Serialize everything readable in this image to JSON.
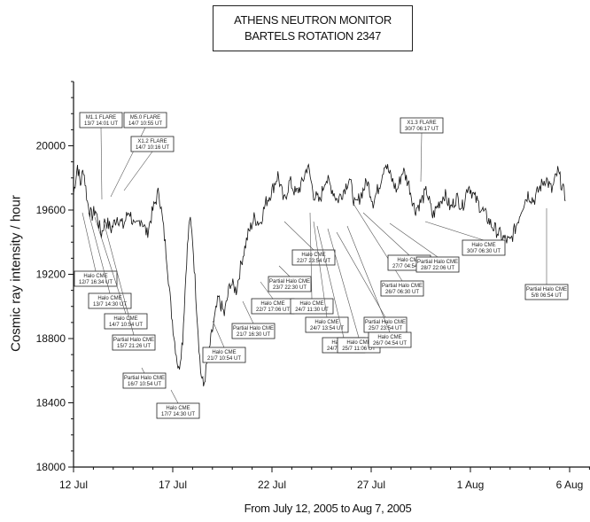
{
  "chart_data": {
    "type": "line",
    "title": [
      "ATHENS NEUTRON MONITOR",
      "BARTELS ROTATION 2347"
    ],
    "xlabel": "From July 12, 2005 to Aug 7, 2005",
    "ylabel": "Cosmic ray intensity / hour",
    "x_ticks": [
      {
        "day": 0,
        "label": "12 Jul"
      },
      {
        "day": 5,
        "label": "17 Jul"
      },
      {
        "day": 10,
        "label": "22 Jul"
      },
      {
        "day": 15,
        "label": "27 Jul"
      },
      {
        "day": 20,
        "label": "1 Aug"
      },
      {
        "day": 25,
        "label": "6 Aug"
      }
    ],
    "xlim": [
      0,
      27
    ],
    "ylim": [
      18000,
      20400
    ],
    "y_ticks": [
      18000,
      18400,
      18800,
      19200,
      19600,
      20000
    ],
    "grid": false,
    "series": [
      {
        "points": [
          [
            0.0,
            19700
          ],
          [
            0.2,
            19880
          ],
          [
            0.35,
            19760
          ],
          [
            0.5,
            19860
          ],
          [
            0.7,
            19650
          ],
          [
            0.9,
            19560
          ],
          [
            1.1,
            19600
          ],
          [
            1.4,
            19450
          ],
          [
            1.6,
            19540
          ],
          [
            1.9,
            19480
          ],
          [
            2.2,
            19560
          ],
          [
            2.5,
            19500
          ],
          [
            2.8,
            19600
          ],
          [
            3.1,
            19480
          ],
          [
            3.4,
            19550
          ],
          [
            3.7,
            19450
          ],
          [
            4.0,
            19600
          ],
          [
            4.3,
            19720
          ],
          [
            4.5,
            19520
          ],
          [
            4.7,
            19300
          ],
          [
            4.9,
            19000
          ],
          [
            5.1,
            18780
          ],
          [
            5.3,
            18600
          ],
          [
            5.5,
            18800
          ],
          [
            5.7,
            19300
          ],
          [
            5.85,
            19550
          ],
          [
            6.0,
            19420
          ],
          [
            6.2,
            19000
          ],
          [
            6.4,
            18600
          ],
          [
            6.55,
            18500
          ],
          [
            6.8,
            18700
          ],
          [
            7.0,
            18850
          ],
          [
            7.3,
            19050
          ],
          [
            7.6,
            18950
          ],
          [
            7.9,
            19150
          ],
          [
            8.2,
            19100
          ],
          [
            8.5,
            19300
          ],
          [
            8.8,
            19450
          ],
          [
            9.1,
            19550
          ],
          [
            9.4,
            19520
          ],
          [
            9.7,
            19650
          ],
          [
            10.0,
            19720
          ],
          [
            10.3,
            19820
          ],
          [
            10.6,
            19650
          ],
          [
            10.9,
            19780
          ],
          [
            11.2,
            19700
          ],
          [
            11.5,
            19760
          ],
          [
            11.8,
            19880
          ],
          [
            12.1,
            19700
          ],
          [
            12.4,
            19650
          ],
          [
            12.7,
            19800
          ],
          [
            13.0,
            19740
          ],
          [
            13.3,
            19660
          ],
          [
            13.6,
            19720
          ],
          [
            13.9,
            19800
          ],
          [
            14.2,
            19620
          ],
          [
            14.5,
            19700
          ],
          [
            14.8,
            19780
          ],
          [
            15.1,
            19650
          ],
          [
            15.4,
            19750
          ],
          [
            15.7,
            19900
          ],
          [
            16.0,
            19800
          ],
          [
            16.3,
            19720
          ],
          [
            16.6,
            19850
          ],
          [
            16.9,
            19760
          ],
          [
            17.2,
            19600
          ],
          [
            17.5,
            19650
          ],
          [
            17.8,
            19720
          ],
          [
            18.1,
            19560
          ],
          [
            18.4,
            19640
          ],
          [
            18.7,
            19700
          ],
          [
            19.0,
            19610
          ],
          [
            19.3,
            19680
          ],
          [
            19.6,
            19620
          ],
          [
            19.9,
            19760
          ],
          [
            20.2,
            19680
          ],
          [
            20.5,
            19620
          ],
          [
            20.8,
            19560
          ],
          [
            21.1,
            19500
          ],
          [
            21.4,
            19460
          ],
          [
            21.7,
            19420
          ],
          [
            22.0,
            19400
          ],
          [
            22.3,
            19500
          ],
          [
            22.6,
            19620
          ],
          [
            22.9,
            19700
          ],
          [
            23.2,
            19660
          ],
          [
            23.5,
            19740
          ],
          [
            23.8,
            19800
          ],
          [
            24.1,
            19720
          ],
          [
            24.4,
            19840
          ],
          [
            24.6,
            19760
          ],
          [
            24.8,
            19660
          ]
        ]
      },
      {
        "points": [
          [
            26.3,
            19600
          ],
          [
            26.5,
            19400
          ],
          [
            26.7,
            19250
          ],
          [
            26.9,
            19200
          ],
          [
            27.0,
            19150
          ]
        ]
      }
    ],
    "annotations": [
      {
        "text": [
          "Halo CME",
          "12/7 16:34 UT"
        ]
      },
      {
        "text": [
          "Halo CME",
          "13/7 14:30 UT"
        ]
      },
      {
        "text": [
          "Halo CME",
          "14/7 10:54 UT"
        ]
      },
      {
        "text": [
          "Partial Halo CME",
          "15/7 21:26 UT"
        ]
      },
      {
        "text": [
          "Partial Halo CME",
          "16/7 10:54 UT"
        ]
      },
      {
        "text": [
          "Halo CME",
          "17/7 14:30 UT"
        ]
      },
      {
        "text": [
          "Halo CME",
          "21/7 10:54 UT"
        ]
      },
      {
        "text": [
          "Partial Halo CME",
          "21/7 16:30 UT"
        ]
      },
      {
        "text": [
          "Halo CME",
          "22/7 17:06 UT"
        ]
      },
      {
        "text": [
          "Partial Halo CME",
          "23/7 22:30 UT"
        ]
      },
      {
        "text": [
          "Halo CME",
          "22/7 23:54 UT"
        ]
      },
      {
        "text": [
          "Halo CME",
          "24/7 11:30 UT"
        ]
      },
      {
        "text": [
          "Halo CME",
          "24/7 13:54 UT"
        ]
      },
      {
        "text": [
          "Halo CME",
          "24/7 22:30 UT"
        ]
      },
      {
        "text": [
          "Halo CME",
          "25/7 11:06 UT"
        ]
      },
      {
        "text": [
          "Partial Halo CME",
          "25/7 23:54 UT"
        ]
      },
      {
        "text": [
          "Halo CME",
          "26/7 04:54 UT"
        ]
      },
      {
        "text": [
          "Partial Halo CME",
          "26/7 06:30 UT"
        ]
      },
      {
        "text": [
          "Halo CME",
          "27/7 04:54 UT"
        ]
      },
      {
        "text": [
          "Partial Halo CME",
          "28/7 22:06 UT"
        ]
      },
      {
        "text": [
          "Halo CME",
          "30/7 06:30 UT"
        ]
      },
      {
        "text": [
          "Partial Halo CME",
          "5/8 06:54 UT"
        ]
      },
      {
        "text": [
          "M1.1 FLARE",
          "13/7 14:01 UT"
        ]
      },
      {
        "text": [
          "M5.0 FLARE",
          "14/7 10:55 UT"
        ]
      },
      {
        "text": [
          "X1.2 FLARE",
          "14/7 10:16 UT"
        ]
      },
      {
        "text": [
          "X1.3 FLARE",
          "30/7 06:17 UT"
        ]
      }
    ]
  }
}
